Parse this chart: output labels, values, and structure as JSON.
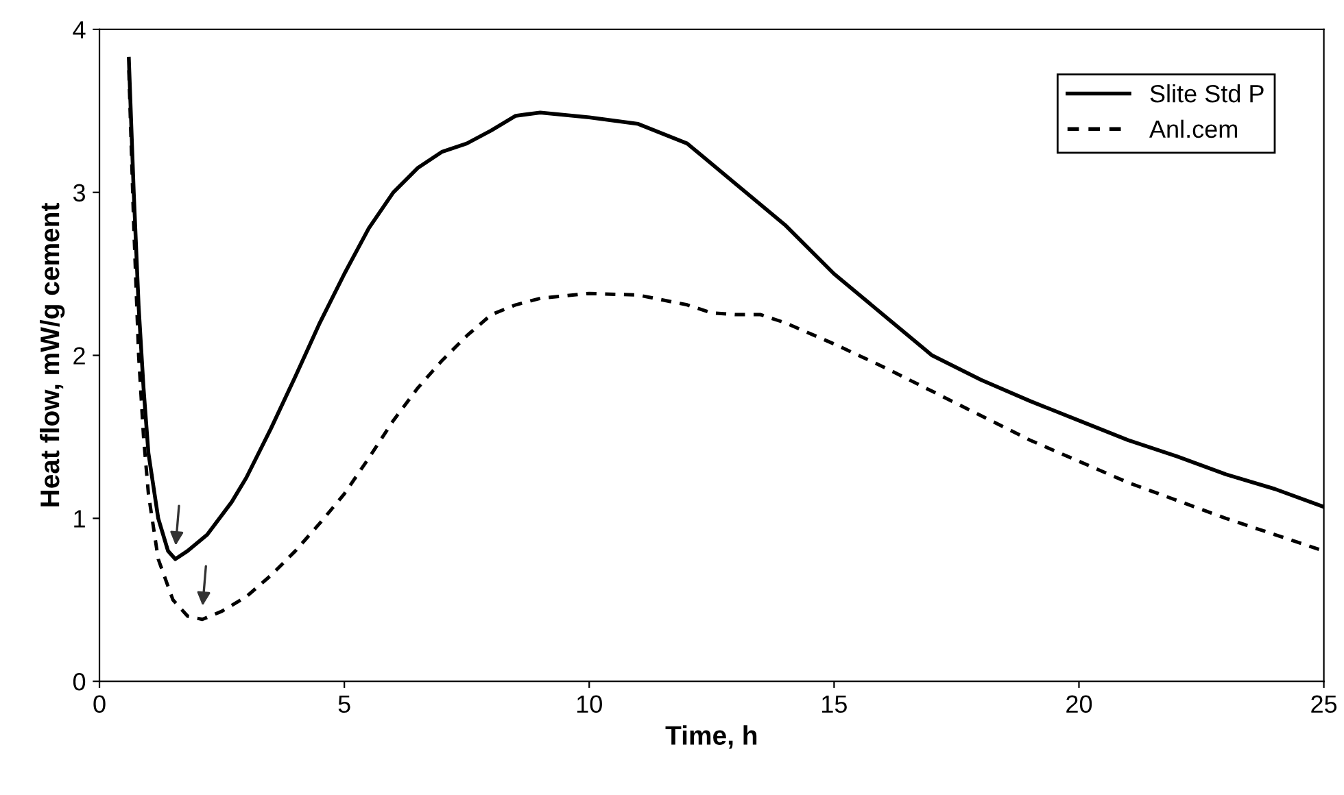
{
  "chart_data": {
    "type": "line",
    "xlabel": "Time, h",
    "ylabel": "Heat flow, mW/g cement",
    "xlim": [
      0,
      25
    ],
    "ylim": [
      0,
      4
    ],
    "xticks": [
      0,
      5,
      10,
      15,
      20,
      25
    ],
    "yticks": [
      0,
      1,
      2,
      3,
      4
    ],
    "grid": false,
    "legend": "top right",
    "marker": "none",
    "series": [
      {
        "name": "Slite Std P",
        "color": "#000000",
        "line_style": "solid",
        "x": [
          0.6,
          0.7,
          0.8,
          0.9,
          1.0,
          1.2,
          1.4,
          1.55,
          1.8,
          2.2,
          2.7,
          3,
          3.5,
          4,
          4.5,
          5,
          5.5,
          6,
          6.5,
          7,
          7.5,
          8,
          8.5,
          9,
          10,
          11,
          12,
          13,
          14,
          15,
          16,
          17,
          18,
          19,
          20,
          21,
          22,
          23,
          24,
          25
        ],
        "values": [
          3.82,
          3.0,
          2.3,
          1.8,
          1.4,
          1.0,
          0.8,
          0.75,
          0.8,
          0.9,
          1.1,
          1.25,
          1.55,
          1.87,
          2.2,
          2.5,
          2.78,
          3.0,
          3.15,
          3.25,
          3.3,
          3.38,
          3.47,
          3.49,
          3.46,
          3.42,
          3.3,
          3.05,
          2.8,
          2.5,
          2.25,
          2.0,
          1.85,
          1.72,
          1.6,
          1.48,
          1.38,
          1.27,
          1.18,
          1.07
        ]
      },
      {
        "name": "Anl.cem",
        "color": "#000000",
        "line_style": "dashed",
        "x": [
          0.6,
          0.7,
          0.8,
          0.9,
          1.0,
          1.2,
          1.5,
          1.8,
          2.1,
          2.5,
          3,
          3.5,
          4,
          4.5,
          5,
          5.5,
          6,
          6.5,
          7,
          7.5,
          8,
          8.5,
          9,
          10,
          11,
          12,
          12.5,
          13,
          13.5,
          14,
          15,
          16,
          17,
          18,
          19,
          20,
          21,
          22,
          23,
          24,
          25
        ],
        "values": [
          3.75,
          2.8,
          2.0,
          1.5,
          1.15,
          0.75,
          0.5,
          0.4,
          0.38,
          0.43,
          0.52,
          0.65,
          0.8,
          0.97,
          1.15,
          1.37,
          1.6,
          1.8,
          1.97,
          2.12,
          2.25,
          2.31,
          2.35,
          2.38,
          2.37,
          2.31,
          2.26,
          2.25,
          2.25,
          2.2,
          2.07,
          1.93,
          1.78,
          1.63,
          1.48,
          1.35,
          1.22,
          1.11,
          1.0,
          0.9,
          0.8
        ]
      }
    ]
  }
}
